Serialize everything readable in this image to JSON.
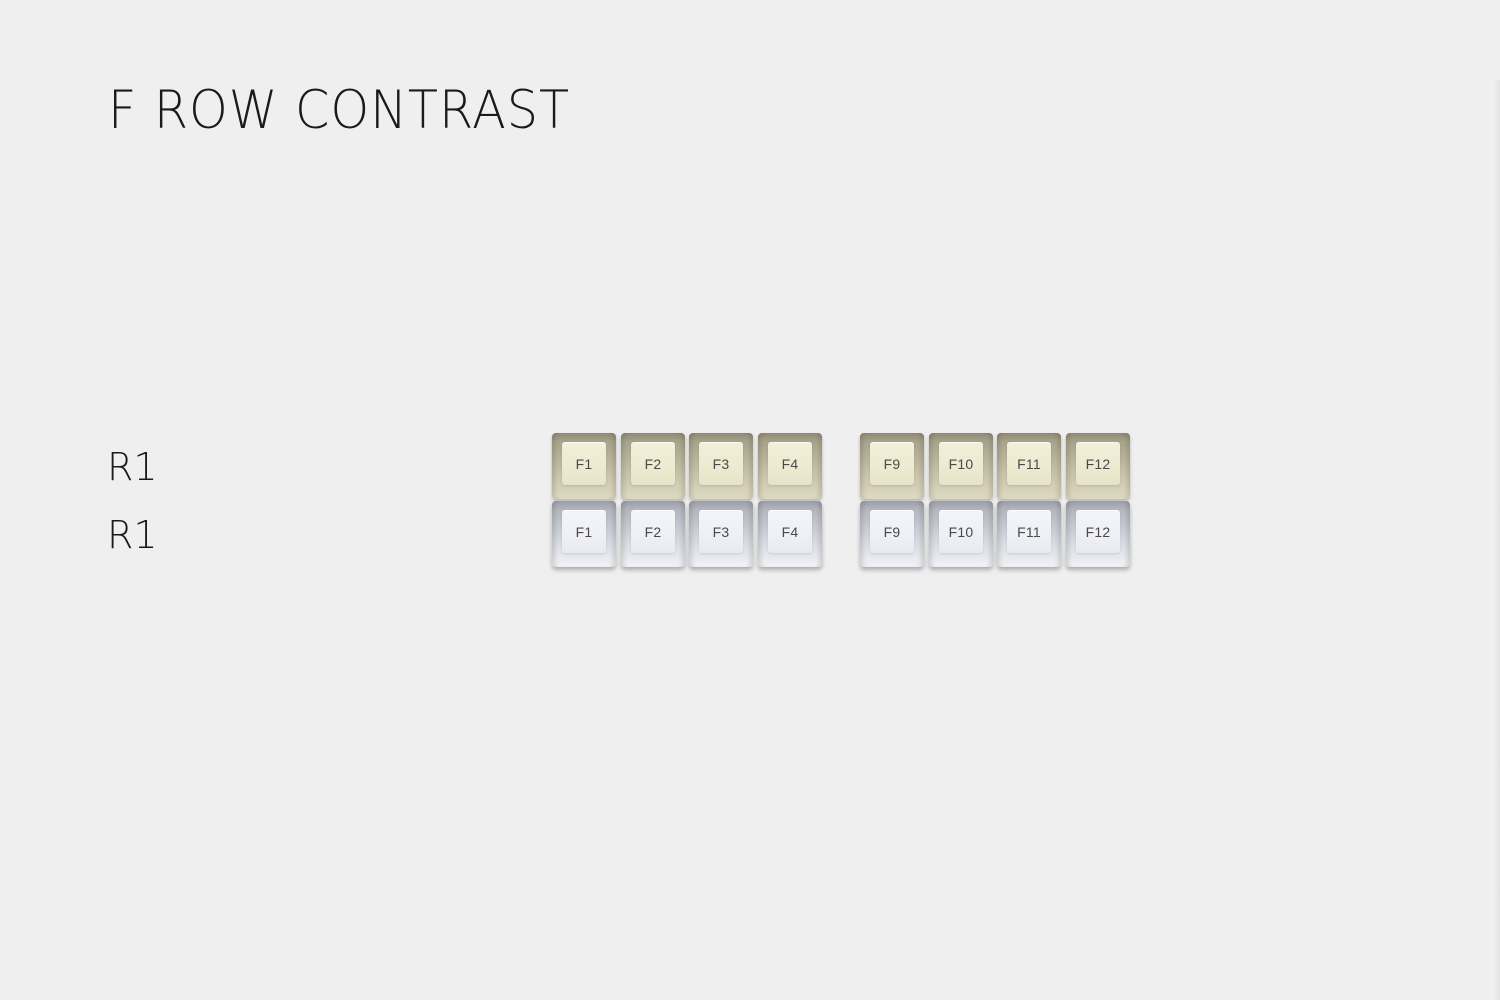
{
  "title": "F ROW CONTRAST",
  "rows": [
    {
      "label": "R1",
      "color": "#ecead0",
      "keys": [
        "F1",
        "F2",
        "F3",
        "F4",
        "F9",
        "F10",
        "F11",
        "F12"
      ]
    },
    {
      "label": "R1",
      "color": "#eef0f6",
      "keys": [
        "F1",
        "F2",
        "F3",
        "F4",
        "F9",
        "F10",
        "F11",
        "F12"
      ]
    }
  ],
  "colors": {
    "background": "#efefef",
    "text": "#1a1a1a",
    "legend": "#4a4a4a"
  }
}
